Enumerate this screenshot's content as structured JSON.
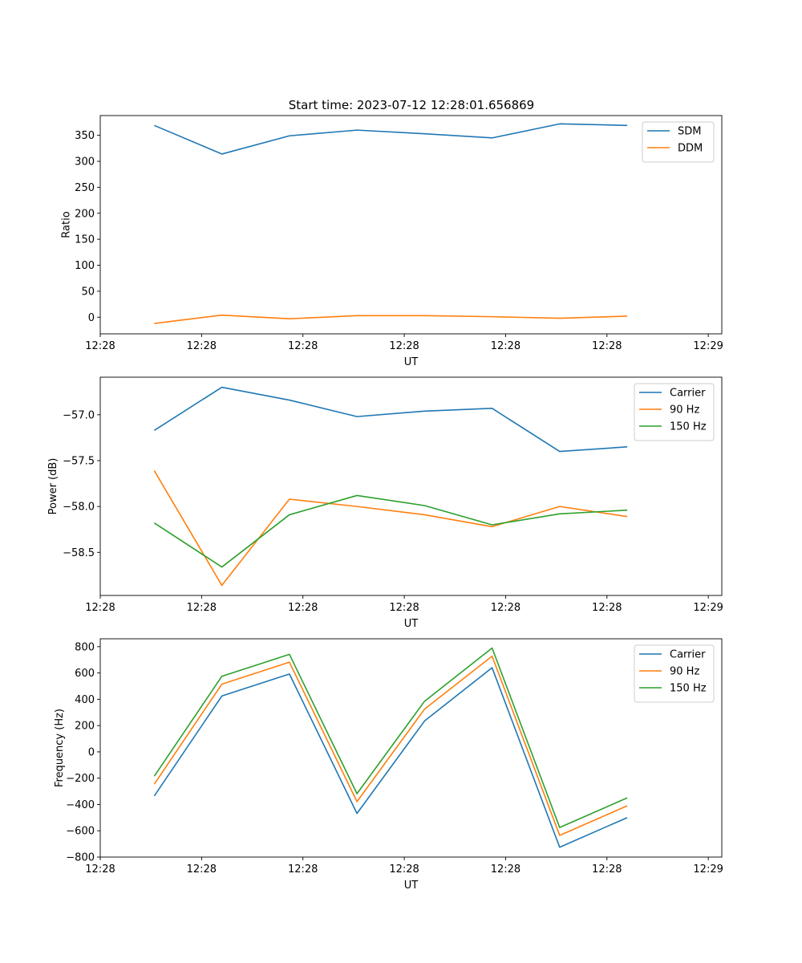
{
  "figure_title": "Start time: 2023-07-12 12:28:01.656869",
  "chart_data": [
    {
      "type": "line",
      "title": "Start time: 2023-07-12 12:28:01.656869",
      "xlabel": "UT",
      "ylabel": "Ratio",
      "x": [
        1,
        2,
        3,
        4,
        5,
        6,
        7,
        8
      ],
      "xlim": [
        0.2,
        9.4
      ],
      "xticks": [
        0.2,
        1.7,
        3.2,
        4.7,
        6.2,
        7.7,
        9.2
      ],
      "xtick_labels": [
        "12:28",
        "12:28",
        "12:28",
        "12:28",
        "12:28",
        "12:28",
        "12:29"
      ],
      "ylim": [
        -32,
        388
      ],
      "yticks": [
        0,
        50,
        100,
        150,
        200,
        250,
        300,
        350
      ],
      "ytick_labels": [
        "0",
        "50",
        "100",
        "150",
        "200",
        "250",
        "300",
        "350"
      ],
      "legend_position": "top-right",
      "series": [
        {
          "name": "SDM",
          "color": "#1f77b4",
          "values": [
            369,
            314,
            349,
            360,
            353,
            345,
            372,
            369
          ]
        },
        {
          "name": "DDM",
          "color": "#ff7f0e",
          "values": [
            -12,
            4,
            -3,
            3,
            3,
            1,
            -2,
            2
          ]
        }
      ]
    },
    {
      "type": "line",
      "title": "",
      "xlabel": "UT",
      "ylabel": "Power (dB)",
      "x": [
        1,
        2,
        3,
        4,
        5,
        6,
        7,
        8
      ],
      "xlim": [
        0.2,
        9.4
      ],
      "xticks": [
        0.2,
        1.7,
        3.2,
        4.7,
        6.2,
        7.7,
        9.2
      ],
      "xtick_labels": [
        "12:28",
        "12:28",
        "12:28",
        "12:28",
        "12:28",
        "12:28",
        "12:29"
      ],
      "ylim": [
        -58.97,
        -56.59
      ],
      "yticks": [
        -57.0,
        -57.5,
        -58.0,
        -58.5
      ],
      "ytick_labels": [
        "−57.0",
        "−57.5",
        "−58.0",
        "−58.5"
      ],
      "legend_position": "top-right",
      "series": [
        {
          "name": "Carrier",
          "color": "#1f77b4",
          "values": [
            -57.17,
            -56.7,
            -56.84,
            -57.02,
            -56.96,
            -56.93,
            -57.4,
            -57.35
          ]
        },
        {
          "name": "90 Hz",
          "color": "#ff7f0e",
          "values": [
            -57.61,
            -58.86,
            -57.92,
            -58.0,
            -58.09,
            -58.22,
            -58.0,
            -58.11
          ]
        },
        {
          "name": "150 Hz",
          "color": "#2ca02c",
          "values": [
            -58.18,
            -58.66,
            -58.09,
            -57.88,
            -57.99,
            -58.2,
            -58.08,
            -58.04
          ]
        }
      ]
    },
    {
      "type": "line",
      "title": "",
      "xlabel": "UT",
      "ylabel": "Frequency (Hz)",
      "x": [
        1,
        2,
        3,
        4,
        5,
        6,
        7,
        8
      ],
      "xlim": [
        0.2,
        9.4
      ],
      "xticks": [
        0.2,
        1.7,
        3.2,
        4.7,
        6.2,
        7.7,
        9.2
      ],
      "xtick_labels": [
        "12:28",
        "12:28",
        "12:28",
        "12:28",
        "12:28",
        "12:28",
        "12:29"
      ],
      "ylim": [
        -800,
        860
      ],
      "yticks": [
        800,
        600,
        400,
        200,
        0,
        -200,
        -400,
        -600,
        -800
      ],
      "ytick_labels": [
        "800",
        "600",
        "400",
        "200",
        "0",
        "−200",
        "−400",
        "−600",
        "−800"
      ],
      "legend_position": "top-right",
      "series": [
        {
          "name": "Carrier",
          "color": "#1f77b4",
          "values": [
            -335,
            425,
            592,
            -468,
            235,
            640,
            -725,
            -500
          ]
        },
        {
          "name": "90 Hz",
          "color": "#ff7f0e",
          "values": [
            -245,
            515,
            682,
            -378,
            325,
            728,
            -635,
            -410
          ]
        },
        {
          "name": "150 Hz",
          "color": "#2ca02c",
          "values": [
            -185,
            575,
            742,
            -318,
            385,
            790,
            -575,
            -350
          ]
        }
      ]
    }
  ]
}
